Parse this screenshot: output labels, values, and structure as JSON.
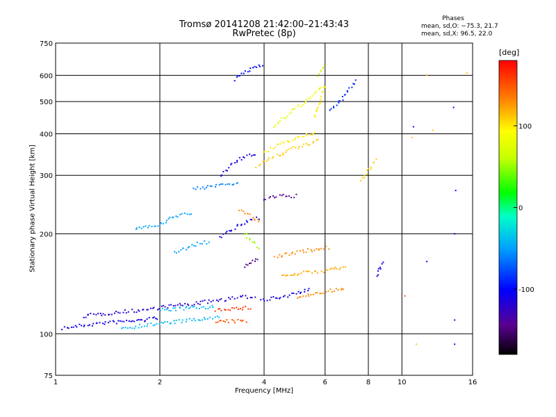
{
  "chart_data": {
    "type": "scatter",
    "title": "Tromsø 20141208 21:42:00–21:43:43",
    "subtitle": "RwPretec (8p)",
    "xlabel": "Frequency [MHz]",
    "ylabel": "Stationary phase Virtual Height [km]",
    "x_scale": "log",
    "y_scale": "log",
    "xlim": [
      1,
      16
    ],
    "ylim": [
      75,
      750
    ],
    "x_ticks": [
      1,
      2,
      4,
      6,
      8,
      10,
      16
    ],
    "x_tick_labels": [
      "1",
      "2",
      "4",
      "6",
      "8",
      "10",
      "16"
    ],
    "y_ticks": [
      75,
      100,
      200,
      300,
      400,
      500,
      600,
      750
    ],
    "y_tick_labels": [
      "75",
      "100",
      "200",
      "300",
      "400",
      "500",
      "600",
      "750"
    ],
    "grid": true,
    "colorbar": {
      "unit": "[deg]",
      "range": [
        -180,
        180
      ],
      "tick_values": [
        100,
        0,
        -100
      ],
      "tick_labels": [
        "100",
        "0",
        "-100"
      ]
    },
    "phases_legend": {
      "label": "Phases",
      "o_line": "mean, sd,O: −75.3, 21.7",
      "x_line": "mean, sd,X:  96.5, 22.0"
    },
    "traces": [
      {
        "x": [
          1.05,
          1.2,
          1.4,
          1.6,
          1.8,
          2.0
        ],
        "y": [
          104,
          106,
          108,
          109,
          110,
          112
        ],
        "phase": -110
      },
      {
        "x": [
          1.2,
          1.5,
          1.8,
          2.1,
          2.5,
          2.9,
          3.3,
          3.8
        ],
        "y": [
          113,
          116,
          118,
          121,
          123,
          126,
          128,
          130
        ],
        "phase": -120
      },
      {
        "x": [
          1.55,
          1.8,
          2.1,
          2.5,
          3.0
        ],
        "y": [
          104,
          106,
          108,
          110,
          112
        ],
        "phase": -40
      },
      {
        "x": [
          2.0,
          2.3,
          2.6,
          2.9
        ],
        "y": [
          118,
          119,
          120,
          121
        ],
        "phase": -40
      },
      {
        "x": [
          2.9,
          3.1,
          3.3,
          3.6
        ],
        "y": [
          108,
          109,
          109,
          109
        ],
        "phase": 150
      },
      {
        "x": [
          2.9,
          3.1,
          3.4,
          3.7
        ],
        "y": [
          118,
          119,
          119,
          120
        ],
        "phase": 160
      },
      {
        "x": [
          1.7,
          2.0,
          2.2,
          2.5
        ],
        "y": [
          208,
          212,
          225,
          232
        ],
        "phase": -50
      },
      {
        "x": [
          2.2,
          2.5,
          2.8
        ],
        "y": [
          175,
          185,
          190
        ],
        "phase": -50
      },
      {
        "x": [
          2.5,
          2.8,
          3.1,
          3.4
        ],
        "y": [
          272,
          278,
          282,
          286
        ],
        "phase": -60
      },
      {
        "x": [
          3.0,
          3.2,
          3.5,
          3.9
        ],
        "y": [
          195,
          205,
          215,
          225
        ],
        "phase": -110
      },
      {
        "x": [
          3.0,
          3.2,
          3.4,
          3.8
        ],
        "y": [
          300,
          320,
          335,
          350
        ],
        "phase": -110
      },
      {
        "x": [
          3.3,
          3.5,
          3.8,
          4.0
        ],
        "y": [
          580,
          610,
          640,
          650
        ],
        "phase": -100
      },
      {
        "x": [
          3.8,
          4.1,
          4.4,
          4.8,
          5.3,
          5.8
        ],
        "y": [
          320,
          335,
          345,
          360,
          370,
          385
        ],
        "phase": 110
      },
      {
        "x": [
          4.0,
          4.3,
          4.7,
          5.2,
          5.7
        ],
        "y": [
          350,
          365,
          380,
          395,
          405
        ],
        "phase": 100
      },
      {
        "x": [
          4.3,
          4.6,
          5.0,
          5.5,
          6.0
        ],
        "y": [
          420,
          450,
          480,
          520,
          560
        ],
        "phase": 80
      },
      {
        "x": [
          4.0,
          4.3,
          4.6,
          5.0
        ],
        "y": [
          255,
          258,
          260,
          260
        ],
        "phase": -140
      },
      {
        "x": [
          3.4,
          3.7,
          3.9
        ],
        "y": [
          235,
          225,
          215
        ],
        "phase": 130
      },
      {
        "x": [
          3.5,
          3.7,
          3.9
        ],
        "y": [
          200,
          190,
          180
        ],
        "phase": 50
      },
      {
        "x": [
          3.5,
          3.7,
          3.9
        ],
        "y": [
          160,
          165,
          170
        ],
        "phase": -150
      },
      {
        "x": [
          4.3,
          4.8,
          5.3,
          5.8,
          6.2
        ],
        "y": [
          170,
          175,
          178,
          180,
          182
        ],
        "phase": 130
      },
      {
        "x": [
          4.5,
          5.0,
          5.5,
          6.0,
          6.5,
          6.9
        ],
        "y": [
          150,
          152,
          153,
          155,
          157,
          160
        ],
        "phase": 120
      },
      {
        "x": [
          5.0,
          5.4,
          5.8,
          6.3,
          6.9
        ],
        "y": [
          128,
          131,
          133,
          135,
          136
        ],
        "phase": 130
      },
      {
        "x": [
          3.9,
          4.2,
          4.6,
          5.0,
          5.5
        ],
        "y": [
          126,
          128,
          130,
          133,
          136
        ],
        "phase": -110
      },
      {
        "x": [
          5.6,
          5.8,
          6.0
        ],
        "y": [
          450,
          500,
          560
        ],
        "phase": 100
      },
      {
        "x": [
          5.7,
          5.9,
          6.0
        ],
        "y": [
          600,
          630,
          645
        ],
        "phase": 60
      },
      {
        "x": [
          7.6,
          7.9,
          8.2,
          8.5
        ],
        "y": [
          290,
          305,
          320,
          335
        ],
        "phase": 110
      },
      {
        "x": [
          6.2,
          6.6,
          7.0,
          7.4
        ],
        "y": [
          470,
          500,
          540,
          580
        ],
        "phase": -90
      },
      {
        "x": [
          8.5,
          8.7,
          8.9
        ],
        "y": [
          150,
          160,
          165
        ],
        "phase": -110
      }
    ],
    "scattered_points": [
      {
        "x": 10.7,
        "y": 390,
        "phase": 110
      },
      {
        "x": 10.8,
        "y": 420,
        "phase": -100
      },
      {
        "x": 11.8,
        "y": 600,
        "phase": 120
      },
      {
        "x": 12.3,
        "y": 410,
        "phase": 110
      },
      {
        "x": 14.1,
        "y": 480,
        "phase": -100
      },
      {
        "x": 14.3,
        "y": 270,
        "phase": -100
      },
      {
        "x": 14.2,
        "y": 200,
        "phase": -100
      },
      {
        "x": 14.2,
        "y": 110,
        "phase": -100
      },
      {
        "x": 14.2,
        "y": 93,
        "phase": -100
      },
      {
        "x": 11.0,
        "y": 93,
        "phase": 110
      },
      {
        "x": 11.8,
        "y": 165,
        "phase": -100
      },
      {
        "x": 15.4,
        "y": 610,
        "phase": 110
      },
      {
        "x": 10.2,
        "y": 130,
        "phase": 150
      }
    ]
  }
}
